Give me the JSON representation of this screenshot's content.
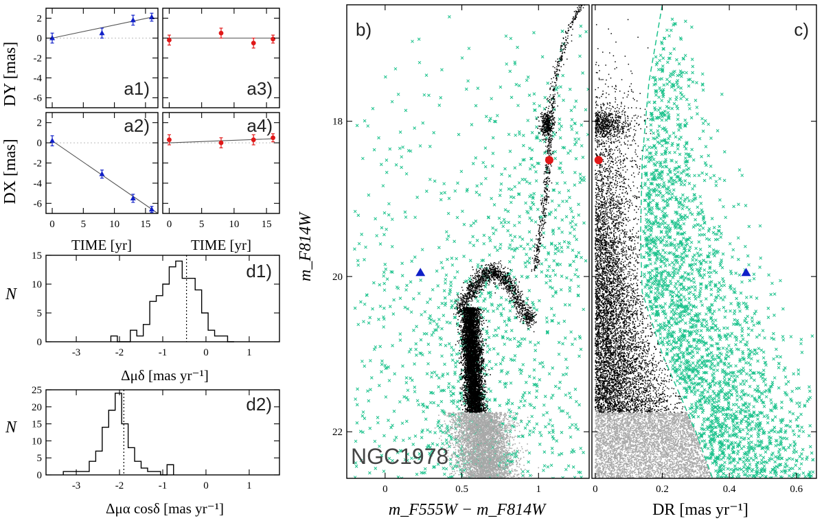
{
  "colors": {
    "blue": "#1020c8",
    "red": "#e01818",
    "green": "#1cc28c",
    "gray": "#a8a8a8",
    "black": "#000000"
  },
  "chart_data": [
    {
      "id": "a1",
      "type": "scatter",
      "panel_label": "a1)",
      "ylabel": "DY [mas]",
      "xlim": [
        -1,
        17
      ],
      "ylim": [
        -7,
        3
      ],
      "yticks": [
        2,
        0,
        -2,
        -4,
        -6
      ],
      "xticks": [
        0,
        5,
        10,
        15
      ],
      "series": [
        {
          "color": "blue",
          "marker": "triangle",
          "points": [
            {
              "x": 0,
              "y": 0.0,
              "err": 0.5
            },
            {
              "x": 8,
              "y": 0.5,
              "err": 0.5
            },
            {
              "x": 13,
              "y": 1.8,
              "err": 0.5
            },
            {
              "x": 16,
              "y": 2.1,
              "err": 0.4
            }
          ]
        }
      ],
      "fit": [
        [
          0,
          0.0
        ],
        [
          16,
          2.1
        ]
      ]
    },
    {
      "id": "a3",
      "type": "scatter",
      "panel_label": "a3)",
      "xlim": [
        -1,
        17
      ],
      "ylim": [
        -7,
        3
      ],
      "xticks": [
        0,
        5,
        10,
        15
      ],
      "yticks": [
        2,
        0,
        -2,
        -4,
        -6
      ],
      "series": [
        {
          "color": "red",
          "marker": "circle",
          "points": [
            {
              "x": 0,
              "y": -0.2,
              "err": 0.5
            },
            {
              "x": 8,
              "y": 0.5,
              "err": 0.5
            },
            {
              "x": 13,
              "y": -0.5,
              "err": 0.5
            },
            {
              "x": 16,
              "y": -0.1,
              "err": 0.4
            }
          ]
        }
      ],
      "fit": [
        [
          0,
          0.0
        ],
        [
          16,
          0.0
        ]
      ]
    },
    {
      "id": "a2",
      "type": "scatter",
      "panel_label": "a2)",
      "ylabel": "DX [mas]",
      "xlabel": "TIME [yr]",
      "xlim": [
        -1,
        17
      ],
      "ylim": [
        -7,
        3
      ],
      "yticks": [
        2,
        0,
        -2,
        -4,
        -6
      ],
      "xticks": [
        0,
        5,
        10,
        15
      ],
      "xtick_labels": [
        "0",
        "5",
        "10",
        "15"
      ],
      "series": [
        {
          "color": "blue",
          "marker": "triangle",
          "points": [
            {
              "x": 0,
              "y": 0.2,
              "err": 0.5
            },
            {
              "x": 8,
              "y": -3.1,
              "err": 0.4
            },
            {
              "x": 13,
              "y": -5.5,
              "err": 0.4
            },
            {
              "x": 16,
              "y": -6.6,
              "err": 0.3
            }
          ]
        }
      ],
      "fit": [
        [
          0,
          0.2
        ],
        [
          17,
          -7.0
        ]
      ]
    },
    {
      "id": "a4",
      "type": "scatter",
      "panel_label": "a4)",
      "xlabel": "TIME [yr]",
      "xlim": [
        -1,
        17
      ],
      "ylim": [
        -7,
        3
      ],
      "yticks": [
        2,
        0,
        -2,
        -4,
        -6
      ],
      "xticks": [
        0,
        5,
        10,
        15
      ],
      "xtick_labels": [
        "0",
        "5",
        "10",
        "15"
      ],
      "series": [
        {
          "color": "red",
          "marker": "circle",
          "points": [
            {
              "x": 0,
              "y": 0.3,
              "err": 0.5
            },
            {
              "x": 8,
              "y": 0.0,
              "err": 0.5
            },
            {
              "x": 13,
              "y": 0.3,
              "err": 0.5
            },
            {
              "x": 16,
              "y": 0.5,
              "err": 0.4
            }
          ]
        }
      ],
      "fit": [
        [
          0,
          0.0
        ],
        [
          16,
          0.4
        ]
      ]
    },
    {
      "id": "d1",
      "type": "bar",
      "panel_label": "d1)",
      "ylabel": "N",
      "xlabel": "Δμδ [mas yr⁻¹]",
      "xlim": [
        -3.7,
        1.7
      ],
      "ylim": [
        0,
        15
      ],
      "xticks": [
        -3,
        -2,
        -1,
        0,
        1
      ],
      "xtick_labels": [
        "-3",
        "-2",
        "-1",
        "0",
        "1"
      ],
      "yticks": [
        0,
        5,
        10,
        15
      ],
      "ytick_labels": [
        "0",
        "5",
        "10",
        "15"
      ],
      "bin_width": 0.15,
      "bin_start": -2.2,
      "values": [
        1,
        0,
        0,
        2,
        1,
        3,
        7,
        8,
        10,
        13,
        14,
        11,
        11,
        9,
        5,
        2,
        1,
        1,
        0
      ],
      "median": -0.45
    },
    {
      "id": "d2",
      "type": "bar",
      "panel_label": "d2)",
      "ylabel": "N",
      "xlabel": "Δμα cosδ [mas yr⁻¹]",
      "xlim": [
        -3.7,
        1.7
      ],
      "ylim": [
        0,
        25
      ],
      "xticks": [
        -3,
        -2,
        -1,
        0,
        1
      ],
      "xtick_labels": [
        "-3",
        "-2",
        "-1",
        "0",
        "1"
      ],
      "yticks": [
        0,
        5,
        10,
        15,
        20,
        25
      ],
      "ytick_labels": [
        "0",
        "5",
        "10",
        "15",
        "20",
        "25"
      ],
      "bin_width": 0.15,
      "bin_start": -3.3,
      "values": [
        1,
        1,
        1,
        1,
        4,
        7,
        14,
        19,
        24,
        15,
        8,
        4,
        2,
        1,
        1,
        0,
        3
      ],
      "median": -1.9
    },
    {
      "id": "b",
      "type": "scatter",
      "panel_label": "b)",
      "annotation": "NGC1978",
      "xlabel": "m_F555W − m_F814W",
      "ylabel": "m_F814W",
      "xlim": [
        -0.25,
        1.33
      ],
      "ylim": [
        22.6,
        16.5
      ],
      "xticks": [
        0,
        0.5,
        1
      ],
      "xtick_labels": [
        "0",
        "0.5",
        "1"
      ],
      "yticks": [
        18,
        20,
        22
      ],
      "ytick_labels": [
        "18",
        "20",
        "22"
      ],
      "highlights": [
        {
          "name": "blue-triangle-star",
          "x": 0.23,
          "y": 19.95,
          "color": "blue",
          "marker": "triangle"
        },
        {
          "name": "red-circle-star",
          "x": 1.07,
          "y": 18.5,
          "color": "red",
          "marker": "circle"
        }
      ],
      "faint_limit": 21.75
    },
    {
      "id": "c",
      "type": "scatter",
      "panel_label": "c)",
      "xlabel": "DR [mas yr⁻¹]",
      "xlim": [
        -0.01,
        0.66
      ],
      "ylim": [
        22.6,
        16.5
      ],
      "xticks": [
        0,
        0.2,
        0.4,
        0.6
      ],
      "xtick_labels": [
        "0",
        "0.2",
        "0.4",
        "0.6"
      ],
      "yticks": [
        18,
        20,
        22
      ],
      "highlights": [
        {
          "name": "blue-triangle-star",
          "x": 0.45,
          "y": 19.95,
          "color": "blue",
          "marker": "triangle"
        },
        {
          "name": "red-circle-star",
          "x": 0.01,
          "y": 18.5,
          "color": "red",
          "marker": "circle"
        }
      ],
      "selection_curve": [
        [
          0.2,
          16.5
        ],
        [
          0.16,
          17.5
        ],
        [
          0.14,
          18.5
        ],
        [
          0.135,
          19.5
        ],
        [
          0.14,
          20.2
        ],
        [
          0.2,
          21.0
        ],
        [
          0.3,
          22.0
        ],
        [
          0.35,
          22.6
        ]
      ]
    }
  ]
}
